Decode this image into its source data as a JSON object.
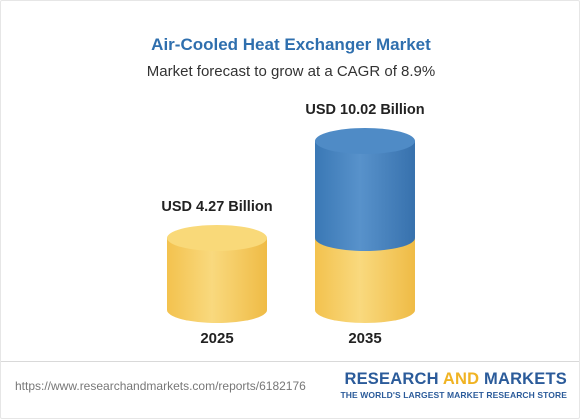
{
  "header": {
    "title": "Air-Cooled Heat Exchanger Market",
    "subtitle": "Market forecast to grow at a CAGR of 8.9%"
  },
  "chart_data": {
    "type": "bar",
    "style": "cylinder",
    "categories": [
      "2025",
      "2035"
    ],
    "values": [
      4.27,
      10.02
    ],
    "value_labels": [
      "USD 4.27 Billion",
      "USD 10.02 Billion"
    ],
    "unit": "USD Billion",
    "ylim": [
      0,
      10.02
    ],
    "grid": false,
    "colors": {
      "base": "#f7d070",
      "growth": "#4a86c0"
    }
  },
  "footer": {
    "url": "https://www.researchandmarkets.com/reports/6182176",
    "brand_part1": "RESEARCH ",
    "brand_part2": "AND",
    "brand_part3": " MARKETS",
    "brand_tagline": "THE WORLD'S LARGEST MARKET RESEARCH STORE"
  }
}
